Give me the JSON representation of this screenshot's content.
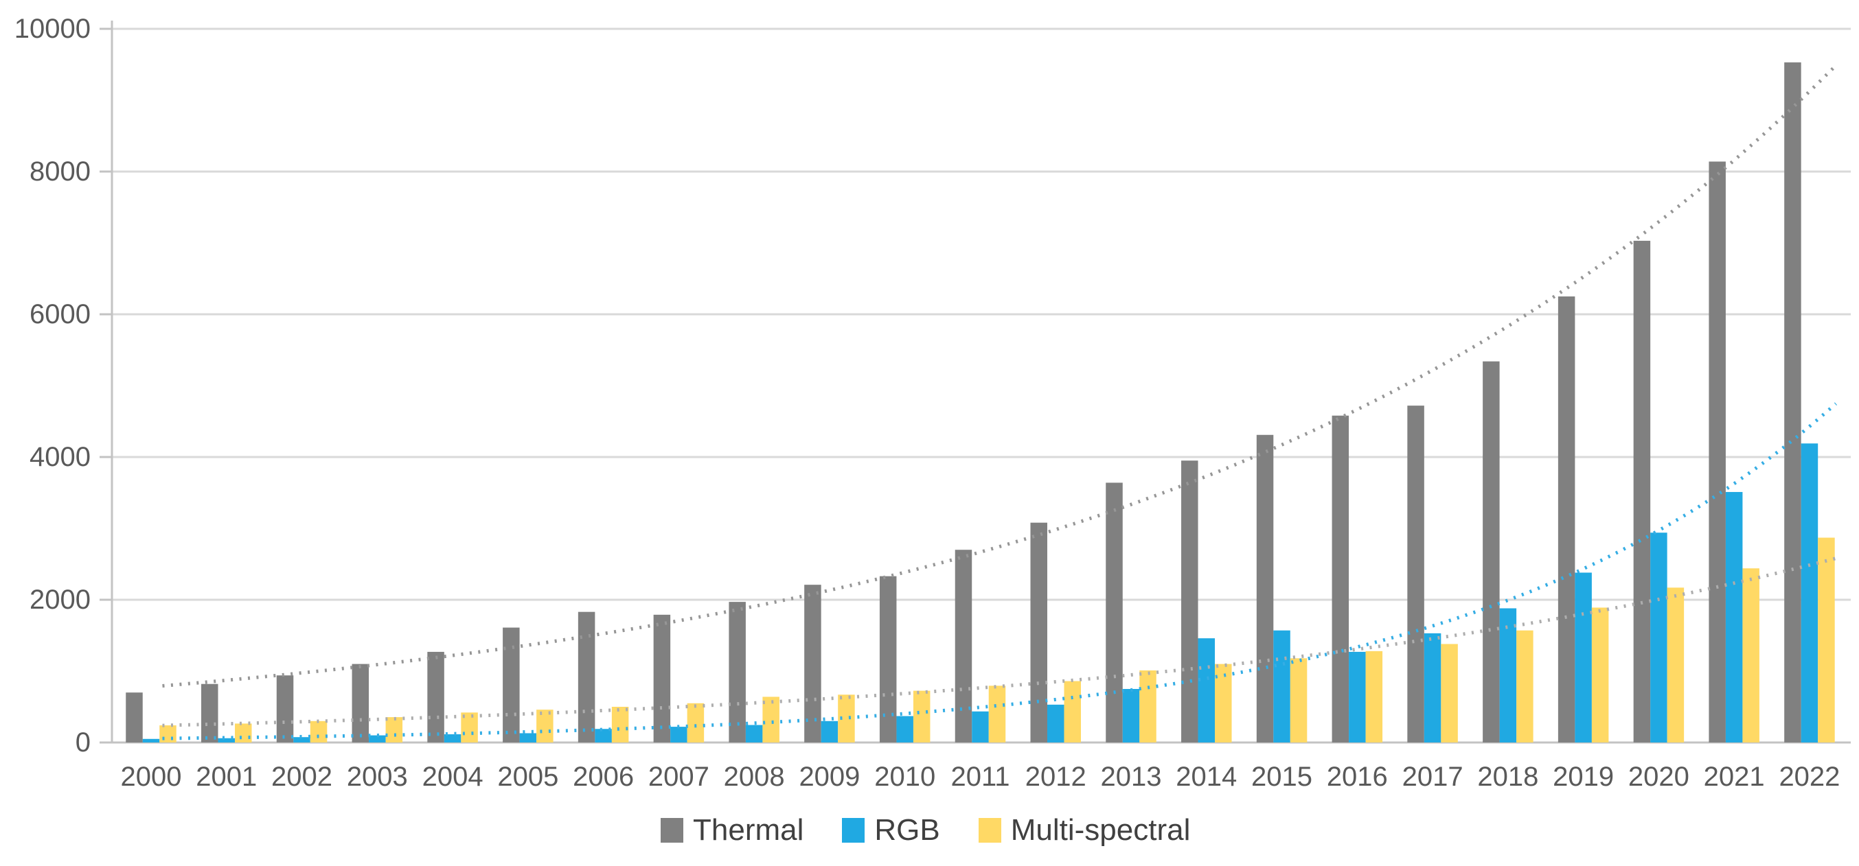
{
  "chart_data": {
    "type": "bar",
    "title": "",
    "xlabel": "",
    "ylabel": "",
    "ylim": [
      0,
      10000
    ],
    "y_tick_labels": [
      "0",
      "2000",
      "4000",
      "6000",
      "8000",
      "10000"
    ],
    "y_tick_values": [
      0,
      2000,
      4000,
      6000,
      8000,
      10000
    ],
    "grid": "horizontal",
    "legend_position": "bottom",
    "categories": [
      "2000",
      "2001",
      "2002",
      "2003",
      "2004",
      "2005",
      "2006",
      "2007",
      "2008",
      "2009",
      "2010",
      "2011",
      "2012",
      "2013",
      "2014",
      "2015",
      "2016",
      "2017",
      "2018",
      "2019",
      "2020",
      "2021",
      "2022"
    ],
    "series": [
      {
        "name": "Thermal",
        "color": "#808080",
        "values": [
          700,
          820,
          940,
          1100,
          1270,
          1610,
          1830,
          1790,
          1970,
          2210,
          2330,
          2700,
          3080,
          3640,
          3950,
          4310,
          4580,
          4720,
          5340,
          6250,
          7030,
          8140,
          9530
        ],
        "trendline": {
          "style": "dotted-exponential",
          "color": "#969696",
          "value_at_2000": 780,
          "value_at_right_edge": 9600
        }
      },
      {
        "name": "RGB",
        "color": "#20A9E2",
        "values": [
          50,
          60,
          75,
          100,
          115,
          130,
          190,
          220,
          245,
          300,
          370,
          435,
          530,
          750,
          1460,
          1570,
          1270,
          1530,
          1880,
          2380,
          2940,
          3510,
          4190
        ],
        "trendline": {
          "style": "dotted-exponential",
          "color": "#35ADE4",
          "value_at_2000": 55,
          "value_at_right_edge": 4850
        }
      },
      {
        "name": "Multi-spectral",
        "color": "#FFD965",
        "values": [
          240,
          265,
          300,
          355,
          420,
          460,
          500,
          550,
          640,
          670,
          725,
          795,
          860,
          1010,
          1100,
          1180,
          1280,
          1380,
          1570,
          1890,
          2170,
          2440,
          2870
        ],
        "trendline": {
          "style": "dotted-exponential",
          "color": "#ADADAD",
          "value_at_2000": 235,
          "value_at_right_edge": 2610
        }
      }
    ],
    "colors": {
      "gridline": "#D9D9D9",
      "axis_line": "#C3C3C3",
      "axis_text": "#595959",
      "legend_text": "#404040",
      "background": "#FFFFFF"
    }
  },
  "legend": {
    "items": [
      {
        "label": "Thermal"
      },
      {
        "label": "RGB"
      },
      {
        "label": "Multi-spectral"
      }
    ]
  }
}
